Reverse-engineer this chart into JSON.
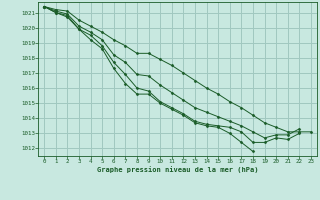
{
  "bg_color": "#c8e8e0",
  "grid_color": "#a0c8c0",
  "line_color": "#1a5c28",
  "marker_color": "#1a5c28",
  "xlabel": "Graphe pression niveau de la mer (hPa)",
  "ylim": [
    1011.5,
    1021.7
  ],
  "xlim": [
    -0.5,
    23.5
  ],
  "yticks": [
    1012,
    1013,
    1014,
    1015,
    1016,
    1017,
    1018,
    1019,
    1020,
    1021
  ],
  "xticks": [
    0,
    1,
    2,
    3,
    4,
    5,
    6,
    7,
    8,
    9,
    10,
    11,
    12,
    13,
    14,
    15,
    16,
    17,
    18,
    19,
    20,
    21,
    22,
    23
  ],
  "series": [
    [
      1021.4,
      1021.0,
      1020.7,
      1019.9,
      1019.2,
      1018.6,
      1017.3,
      1016.3,
      1015.6,
      1015.6,
      1015.0,
      1014.6,
      1014.2,
      1013.7,
      1013.5,
      1013.4,
      1013.0,
      1012.4,
      1011.8,
      null,
      null,
      null,
      null,
      null
    ],
    [
      1021.4,
      1021.0,
      1020.8,
      1019.9,
      1019.5,
      1018.8,
      1017.7,
      1016.9,
      1016.0,
      1015.8,
      1015.1,
      1014.7,
      1014.3,
      1013.8,
      1013.6,
      1013.5,
      1013.4,
      1013.1,
      1012.4,
      1012.4,
      1012.7,
      1012.6,
      1013.0,
      null
    ],
    [
      1021.4,
      1021.1,
      1020.9,
      1020.1,
      1019.7,
      1019.2,
      1018.2,
      1017.7,
      1016.9,
      1016.8,
      1016.2,
      1015.7,
      1015.2,
      1014.7,
      1014.4,
      1014.1,
      1013.8,
      1013.5,
      1013.1,
      1012.7,
      1012.9,
      1012.9,
      1013.3,
      null
    ],
    [
      1021.4,
      1021.2,
      1021.1,
      1020.5,
      1020.1,
      1019.7,
      1019.2,
      1018.8,
      1018.3,
      1018.3,
      1017.9,
      1017.5,
      1017.0,
      1016.5,
      1016.0,
      1015.6,
      1015.1,
      1014.7,
      1014.2,
      1013.7,
      1013.4,
      1013.1,
      1013.1,
      1013.1
    ]
  ]
}
